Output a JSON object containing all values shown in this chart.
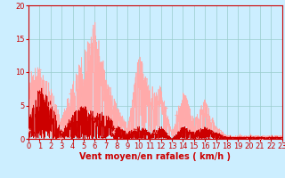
{
  "title": "",
  "xlabel": "Vent moyen/en rafales ( km/h )",
  "background_color": "#cceeff",
  "grid_color": "#99cccc",
  "xlim": [
    0,
    23
  ],
  "ylim": [
    0,
    20
  ],
  "yticks": [
    0,
    5,
    10,
    15,
    20
  ],
  "xticks": [
    0,
    1,
    2,
    3,
    4,
    5,
    6,
    7,
    8,
    9,
    10,
    11,
    12,
    13,
    14,
    15,
    16,
    17,
    18,
    19,
    20,
    21,
    22,
    23
  ],
  "color_rafales": "#ffaaaa",
  "color_moyen": "#cc0000",
  "xlabel_fontsize": 7,
  "tick_fontsize": 6,
  "xlabel_color": "#cc0000",
  "tick_color": "#cc0000"
}
